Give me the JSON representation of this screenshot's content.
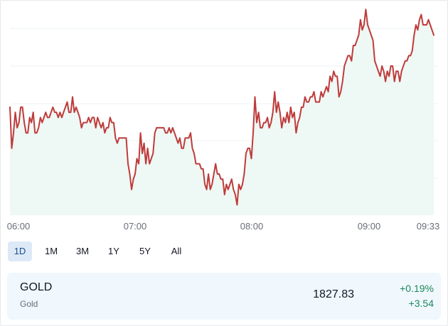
{
  "colors": {
    "line": "#bf3b3b",
    "area": "#eef8f4",
    "grid": "#eef0f3",
    "positive": "#1a8a5a",
    "active_range_bg": "#dde9f7"
  },
  "chart_data": {
    "type": "line",
    "x_tick_labels": [
      "06:00",
      "07:00",
      "08:00",
      "09:00",
      "09:33"
    ],
    "series": [
      {
        "values": [
          1827.1,
          1826.3,
          1826.6,
          1827.0,
          1826.7,
          1826.8,
          1827.1,
          1827.1,
          1826.8,
          1826.6,
          1826.6,
          1826.9,
          1826.8,
          1827.0,
          1826.6,
          1826.6,
          1826.7,
          1826.9,
          1826.8,
          1826.9,
          1827.0,
          1826.9,
          1826.9,
          1827.0,
          1827.1,
          1827.0,
          1827.0,
          1826.9,
          1827.0,
          1826.9,
          1827.0,
          1827.1,
          1827.2,
          1827.0,
          1827.0,
          1827.3,
          1827.0,
          1827.1,
          1827.0,
          1826.9,
          1826.7,
          1826.8,
          1826.8,
          1826.8,
          1826.9,
          1826.8,
          1826.9,
          1826.9,
          1826.7,
          1826.9,
          1826.8,
          1826.7,
          1826.8,
          1826.6,
          1826.7,
          1826.7,
          1826.9,
          1826.8,
          1826.8,
          1826.5,
          1826.4,
          1826.5,
          1826.5,
          1826.5,
          1826.5,
          1826.5,
          1826.0,
          1825.8,
          1825.5,
          1825.7,
          1825.8,
          1826.1,
          1826.0,
          1826.6,
          1826.2,
          1826.4,
          1826.0,
          1826.3,
          1826.0,
          1826.1,
          1826.2,
          1826.6,
          1826.7,
          1826.7,
          1826.7,
          1826.7,
          1826.7,
          1826.6,
          1826.6,
          1826.7,
          1826.6,
          1826.7,
          1826.6,
          1826.5,
          1826.4,
          1826.5,
          1826.3,
          1826.3,
          1826.5,
          1826.5,
          1826.5,
          1826.6,
          1826.3,
          1826.2,
          1826.0,
          1826.0,
          1826.0,
          1825.9,
          1825.9,
          1825.6,
          1825.5,
          1825.8,
          1825.5,
          1825.6,
          1825.8,
          1826.0,
          1825.8,
          1825.8,
          1825.7,
          1825.7,
          1825.4,
          1825.6,
          1825.5,
          1825.6,
          1825.7,
          1825.5,
          1825.4,
          1825.2,
          1825.6,
          1825.5,
          1825.6,
          1825.8,
          1826.2,
          1826.3,
          1826.3,
          1826.1,
          1826.6,
          1827.3,
          1826.8,
          1827.0,
          1826.7,
          1826.7,
          1826.8,
          1826.8,
          1826.9,
          1826.7,
          1826.8,
          1827.0,
          1827.4,
          1827.0,
          1827.2,
          1827.0,
          1826.7,
          1826.9,
          1826.8,
          1827.0,
          1826.8,
          1827.1,
          1826.9,
          1827.0,
          1826.6,
          1826.8,
          1826.9,
          1827.1,
          1827.1,
          1827.3,
          1827.2,
          1827.2,
          1827.3,
          1827.3,
          1827.4,
          1827.2,
          1827.2,
          1827.2,
          1827.4,
          1827.3,
          1827.4,
          1827.5,
          1827.4,
          1827.7,
          1827.6,
          1827.8,
          1827.7,
          1827.7,
          1827.3,
          1827.4,
          1827.6,
          1827.9,
          1828.0,
          1828.1,
          1828.1,
          1828.0,
          1828.3,
          1828.3,
          1828.4,
          1828.5,
          1828.8,
          1828.6,
          1828.7,
          1829.0,
          1828.7,
          1828.6,
          1828.5,
          1828.4,
          1828.0,
          1827.9,
          1827.8,
          1827.7,
          1827.9,
          1827.8,
          1827.6,
          1827.8,
          1827.7,
          1827.9,
          1827.9,
          1827.6,
          1827.8,
          1827.8,
          1827.6,
          1827.8,
          1827.9,
          1828.0,
          1828.0,
          1828.1,
          1828.1,
          1828.2,
          1828.5,
          1828.7,
          1828.6,
          1828.8,
          1828.9,
          1828.7,
          1828.7,
          1828.7,
          1828.8,
          1828.7,
          1828.6,
          1828.5
        ]
      }
    ]
  },
  "ranges": [
    "1D",
    "1M",
    "3M",
    "1Y",
    "5Y",
    "All"
  ],
  "active_range": "1D",
  "quote": {
    "symbol": "GOLD",
    "name": "Gold",
    "price": "1827.83",
    "change_pct": "+0.19%",
    "change_abs": "+3.54"
  }
}
